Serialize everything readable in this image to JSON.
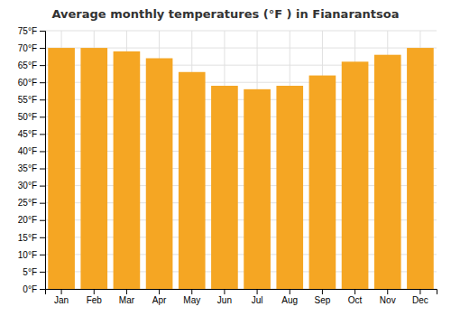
{
  "chart_data": {
    "type": "bar",
    "title": "Average monthly temperatures (°F ) in Fianarantsoa",
    "categories": [
      "Jan",
      "Feb",
      "Mar",
      "Apr",
      "May",
      "Jun",
      "Jul",
      "Aug",
      "Sep",
      "Oct",
      "Nov",
      "Dec"
    ],
    "values": [
      70,
      70,
      69,
      67,
      63,
      59,
      58,
      59,
      62,
      66,
      68,
      70
    ],
    "color": "#F5A623",
    "ylim": [
      0,
      75
    ],
    "yticks": [
      {
        "value": 0,
        "label": "0°F"
      },
      {
        "value": 5,
        "label": "5°F"
      },
      {
        "value": 10,
        "label": "10°F"
      },
      {
        "value": 15,
        "label": "15°F"
      },
      {
        "value": 20,
        "label": "20°F"
      },
      {
        "value": 25,
        "label": "25°F"
      },
      {
        "value": 30,
        "label": "30°F"
      },
      {
        "value": 35,
        "label": "35°F"
      },
      {
        "value": 40,
        "label": "40°F"
      },
      {
        "value": 45,
        "label": "45°F"
      },
      {
        "value": 50,
        "label": "50°F"
      },
      {
        "value": 55,
        "label": "55°F"
      },
      {
        "value": 60,
        "label": "60°F"
      },
      {
        "value": 65,
        "label": "65°F"
      },
      {
        "value": 70,
        "label": "70°F"
      },
      {
        "value": 75,
        "label": "75°F"
      }
    ],
    "grid": true
  }
}
